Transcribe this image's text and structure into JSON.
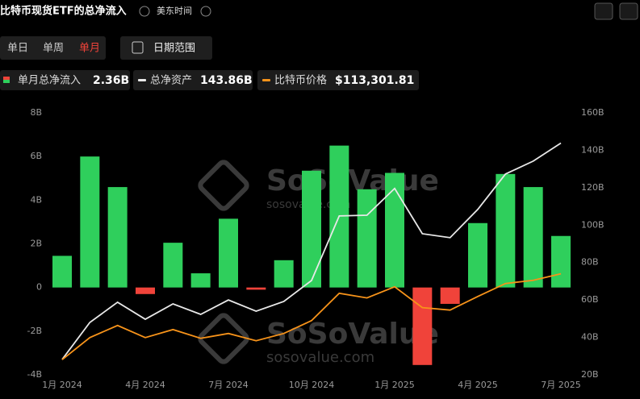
{
  "header": {
    "title": "比特币现货ETF的总净流入",
    "timezone": "美东时间",
    "tabs": [
      "单日",
      "单周",
      "单月"
    ],
    "active_tab": 2,
    "date_range": "日期范围"
  },
  "watermark": {
    "brand": "SoSoValue",
    "url": "sosovalue.com"
  },
  "chart_data": {
    "type": "combo",
    "categories": [
      "1月 2024",
      null,
      null,
      "4月 2024",
      null,
      null,
      "7月 2024",
      null,
      null,
      "10月 2024",
      null,
      null,
      "1月 2025",
      null,
      null,
      "4月 2025",
      null,
      null,
      "7月 2025"
    ],
    "series": [
      {
        "name": "单月总净流入",
        "type": "bar",
        "color": "#2fcf5c",
        "negative_color": "#f0433a",
        "legend_label": "2.36B",
        "values": [
          1.45,
          6.0,
          4.6,
          -0.3,
          2.05,
          0.65,
          3.15,
          -0.1,
          1.25,
          5.35,
          6.5,
          4.5,
          5.25,
          -3.55,
          -0.75,
          2.95,
          5.2,
          4.6,
          2.36
        ]
      },
      {
        "name": "总净资产",
        "type": "line",
        "axis": "y2",
        "color": "#e8e8e8",
        "legend_label": "143.86B",
        "values": [
          28.2,
          48,
          58.8,
          49.7,
          57.9,
          52.3,
          60,
          54,
          59.2,
          70.4,
          104.9,
          105.3,
          119.6,
          95.4,
          93.3,
          108.4,
          127.3,
          134.2,
          143.86
        ]
      },
      {
        "name": "比特币价格",
        "type": "line",
        "axis": "y3",
        "color": "#f7931a",
        "legend_label": "$113,301.81",
        "values": [
          42500,
          60700,
          70700,
          60700,
          67300,
          60100,
          64100,
          58100,
          64100,
          74700,
          97200,
          93400,
          102600,
          85400,
          83400,
          94600,
          105300,
          107900,
          113301.81
        ]
      }
    ],
    "ylim": [
      -4,
      8
    ],
    "yticks": [
      {
        "value": -4,
        "label": "-4B"
      },
      {
        "value": -2,
        "label": "-2B"
      },
      0,
      {
        "value": 2,
        "label": "2B"
      },
      {
        "value": 4,
        "label": "4B"
      },
      {
        "value": 6,
        "label": "6B"
      },
      {
        "value": 8,
        "label": "8B"
      }
    ],
    "y2lim": [
      20,
      160
    ],
    "y2ticks": [
      {
        "value": 20,
        "label": "20B"
      },
      {
        "value": 40,
        "label": "40B"
      },
      {
        "value": 60,
        "label": "60B"
      },
      {
        "value": 80,
        "label": "80B"
      },
      {
        "value": 100,
        "label": "100B"
      },
      {
        "value": 120,
        "label": "120B"
      },
      {
        "value": 140,
        "label": "140B"
      },
      {
        "value": 160,
        "label": "160B"
      }
    ],
    "y3lim": [
      30000,
      246000
    ],
    "grid": false
  }
}
